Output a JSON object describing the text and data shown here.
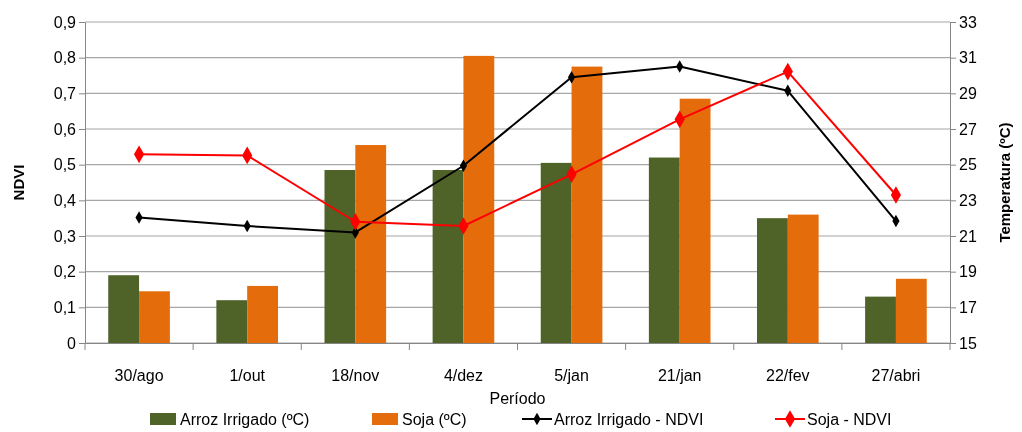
{
  "chart_data": {
    "type": "bar",
    "xlabel": "Período",
    "ylabel": "NDVI",
    "y2label": "Temperatura (ºC)",
    "categories": [
      "30/ago",
      "1/out",
      "18/nov",
      "4/dez",
      "5/jan",
      "21/jan",
      "22/fev",
      "27/abri"
    ],
    "series": [
      {
        "name": "Arroz Irrigado (ºC)",
        "axis": "y2",
        "color": "#4f6228",
        "values": [
          18.8,
          17.4,
          24.7,
          24.7,
          25.1,
          25.4,
          22.0,
          17.6
        ]
      },
      {
        "name": "Soja (ºC)",
        "axis": "y2",
        "color": "#e46c0a",
        "values": [
          17.9,
          18.2,
          26.1,
          31.1,
          30.5,
          28.7,
          22.2,
          18.6
        ]
      },
      {
        "name": "Arroz Irrigado - NDVI",
        "type": "line",
        "color": "#000000",
        "values": [
          0.352,
          0.328,
          0.31,
          0.497,
          0.745,
          0.775,
          0.707,
          0.342
        ]
      },
      {
        "name": "Soja - NDVI",
        "type": "line",
        "color": "#ff0000",
        "values": [
          0.529,
          0.526,
          0.34,
          0.328,
          0.473,
          0.627,
          0.761,
          0.415
        ]
      }
    ],
    "ylim": [
      0,
      0.9
    ],
    "yticks": [
      {
        "value": 0,
        "label": "0"
      },
      {
        "value": 0.1,
        "label": "0,1"
      },
      {
        "value": 0.2,
        "label": "0,2"
      },
      {
        "value": 0.3,
        "label": "0,3"
      },
      {
        "value": 0.4,
        "label": "0,4"
      },
      {
        "value": 0.5,
        "label": "0,5"
      },
      {
        "value": 0.6,
        "label": "0,6"
      },
      {
        "value": 0.7,
        "label": "0,7"
      },
      {
        "value": 0.8,
        "label": "0,8"
      },
      {
        "value": 0.9,
        "label": "0,9"
      }
    ],
    "y2lim": [
      15,
      33
    ],
    "y2ticks": [
      15,
      17,
      19,
      21,
      23,
      25,
      27,
      29,
      31,
      33
    ],
    "grid": "y",
    "legend": "bottom",
    "marker": "diamond",
    "line_style": "solid"
  }
}
